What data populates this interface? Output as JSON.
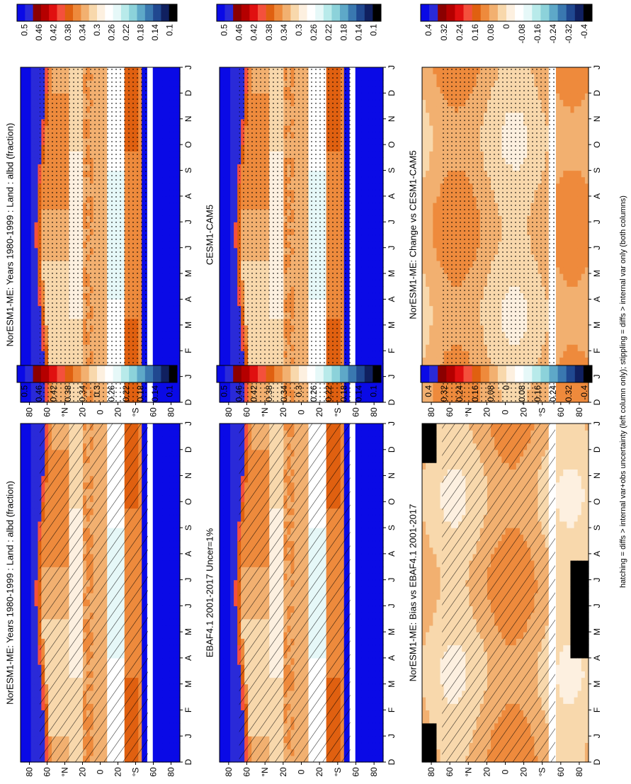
{
  "chart_data": {
    "type": "heatmap",
    "orientation": "rotated-90-ccw",
    "footnote": "hatching = diffs > internal var+obs uncertainty (left column only); stippling = diffs > internal var only (both columns)",
    "panels": [
      {
        "id": "model-left",
        "title": "NorESM1-ME: Years 1980-1999 : Land : albd (fraction)",
        "kind": "abs",
        "overlay": "hatch",
        "seed": 1,
        "months": [
          "D",
          "J",
          "F",
          "M",
          "A",
          "M",
          "J",
          "J",
          "A",
          "S",
          "O",
          "N",
          "D",
          "J"
        ],
        "lat_ticks": [
          "80",
          "60",
          "°N",
          "20",
          "0",
          "20",
          "°S",
          "60",
          "80"
        ]
      },
      {
        "id": "obs-left",
        "title": "EBAF4.1 2001-2017 Uncer=1%",
        "kind": "abs",
        "overlay": "hatch",
        "seed": 2,
        "months": [
          "D",
          "J",
          "F",
          "M",
          "A",
          "M",
          "J",
          "J",
          "A",
          "S",
          "O",
          "N",
          "D",
          "J"
        ],
        "lat_ticks": [
          "80",
          "60",
          "°N",
          "20",
          "0",
          "20",
          "°S",
          "60",
          "80"
        ]
      },
      {
        "id": "bias-left",
        "title": "NorESM1-ME: Bias vs EBAF4.1 2001-2017",
        "kind": "diff",
        "overlay": "hatch",
        "seed": 3,
        "months": [
          "D",
          "J",
          "F",
          "M",
          "A",
          "M",
          "J",
          "J",
          "A",
          "S",
          "O",
          "N",
          "D",
          "J"
        ],
        "lat_ticks": [
          "80",
          "60",
          "°N",
          "20",
          "0",
          "20",
          "°S",
          "60",
          "80"
        ]
      },
      {
        "id": "model-right",
        "title": "NorESM1-ME: Years 1980-1999 : Land : albd (fraction)",
        "kind": "abs",
        "overlay": "stipple",
        "seed": 4,
        "months": [
          "D",
          "J",
          "F",
          "M",
          "A",
          "M",
          "J",
          "J",
          "A",
          "S",
          "O",
          "N",
          "D",
          "J"
        ],
        "lat_ticks": [
          "80",
          "60",
          "°N",
          "20",
          "0",
          "20",
          "°S",
          "60",
          "80"
        ]
      },
      {
        "id": "cesm-right",
        "title": "CESM1-CAM5",
        "kind": "abs",
        "overlay": "stipple",
        "seed": 5,
        "months": [
          "D",
          "J",
          "F",
          "M",
          "A",
          "M",
          "J",
          "J",
          "A",
          "S",
          "O",
          "N",
          "D",
          "J"
        ],
        "lat_ticks": [
          "80",
          "60",
          "°N",
          "20",
          "0",
          "20",
          "°S",
          "60",
          "80"
        ]
      },
      {
        "id": "change-right",
        "title": "NorESM1-ME: Change vs CESM1-CAM5",
        "kind": "diff",
        "overlay": "stipple",
        "seed": 6,
        "months": [
          "D",
          "J",
          "F",
          "M",
          "A",
          "M",
          "J",
          "J",
          "A",
          "S",
          "O",
          "N",
          "D",
          "J"
        ],
        "lat_ticks": [
          "80",
          "60",
          "°N",
          "20",
          "0",
          "20",
          "°S",
          "60",
          "80"
        ]
      }
    ],
    "colorbars": {
      "abs": {
        "labels": [
          "0.5",
          "0.46",
          "0.42",
          "0.38",
          "0.34",
          "0.3",
          "0.26",
          "0.22",
          "0.18",
          "0.14",
          "0.1"
        ],
        "colors": [
          "#0a0ae6",
          "#2a2ad8",
          "#8b0000",
          "#b50000",
          "#e01010",
          "#f4503c",
          "#e06010",
          "#ee8a3c",
          "#f2b070",
          "#f8d8ac",
          "#fdf0e0",
          "#ffffff",
          "#e6f8f8",
          "#b8eaea",
          "#8cd2da",
          "#5ea8c8",
          "#3a78b0",
          "#204890",
          "#102060",
          "#000000"
        ]
      },
      "diff": {
        "labels": [
          "0.4",
          "0.32",
          "0.24",
          "0.16",
          "0.08",
          "0",
          "-0.08",
          "-0.16",
          "-0.24",
          "-0.32",
          "-0.4"
        ],
        "colors": [
          "#0a0ae6",
          "#2a2ad8",
          "#8b0000",
          "#b50000",
          "#e01010",
          "#f4503c",
          "#e06010",
          "#ee8a3c",
          "#f2b070",
          "#f8d8ac",
          "#fdf0e0",
          "#ffffff",
          "#e6f8f8",
          "#b8eaea",
          "#8cd2da",
          "#5ea8c8",
          "#3a78b0",
          "#204890",
          "#102060",
          "#000000"
        ]
      }
    }
  }
}
